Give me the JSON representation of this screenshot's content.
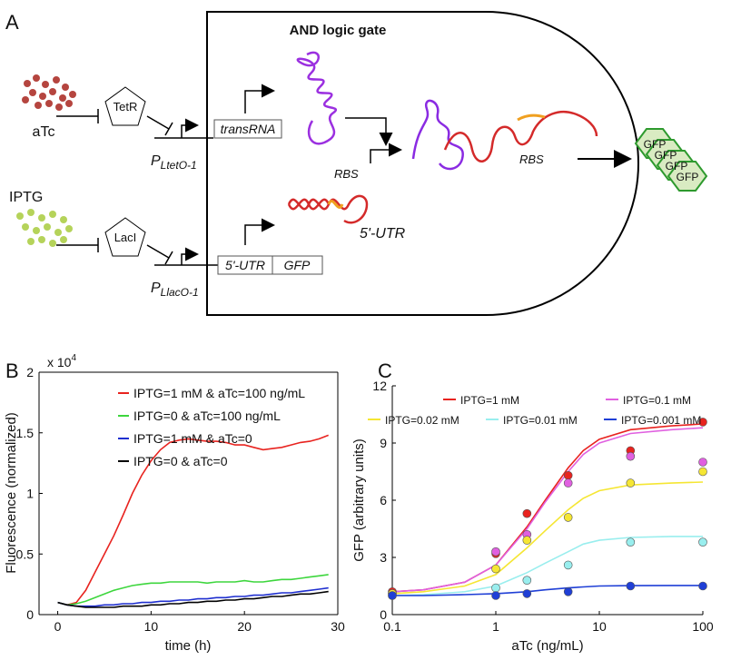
{
  "diagram": {
    "panel_label": "A",
    "title": "AND logic gate",
    "inducer1": "aTc",
    "repressor1": "TetR",
    "promoter1": {
      "letter": "P",
      "subscript": "LtetO-1"
    },
    "gene1": "transRNA",
    "inducer2": "IPTG",
    "repressor2": "LacI",
    "promoter2": {
      "letter": "P",
      "subscript": "LlacO-1"
    },
    "gene2_parts": [
      "5'-UTR",
      "GFP"
    ],
    "rbs_labels": [
      "RBS",
      "RBS"
    ],
    "utr_label": "5'-UTR",
    "product_labels": [
      "GFP",
      "GFP",
      "GFP",
      "GFP"
    ]
  },
  "chart_data": [
    {
      "panel_label": "B",
      "type": "line",
      "x_label": "time (h)",
      "y_label": "Fluorescence (normalized)",
      "y_multiplier": {
        "base": "x 10",
        "exponent": "4"
      },
      "x": [
        0,
        1,
        2,
        3,
        4,
        5,
        6,
        7,
        8,
        9,
        10,
        11,
        12,
        13,
        14,
        15,
        16,
        17,
        18,
        19,
        20,
        21,
        22,
        23,
        24,
        25,
        26,
        27,
        28,
        29
      ],
      "xlim": [
        -2,
        30
      ],
      "xticks": [
        0,
        10,
        20,
        30
      ],
      "ylim": [
        0,
        2
      ],
      "yticks": [
        0,
        0.5,
        1,
        1.5,
        2
      ],
      "legend": "upper left",
      "series": [
        {
          "name": "IPTG=1 mM & aTc=100 ng/mL",
          "color": "#e8231f",
          "values": [
            0.1,
            0.08,
            0.1,
            0.2,
            0.35,
            0.5,
            0.65,
            0.82,
            1.0,
            1.15,
            1.27,
            1.36,
            1.42,
            1.44,
            1.45,
            1.44,
            1.43,
            1.43,
            1.42,
            1.4,
            1.4,
            1.38,
            1.36,
            1.37,
            1.38,
            1.4,
            1.42,
            1.43,
            1.45,
            1.48
          ]
        },
        {
          "name": "IPTG=0 & aTc=100 ng/mL",
          "color": "#3dd63d",
          "values": [
            0.1,
            0.08,
            0.09,
            0.11,
            0.14,
            0.17,
            0.2,
            0.22,
            0.24,
            0.25,
            0.26,
            0.26,
            0.27,
            0.27,
            0.27,
            0.27,
            0.26,
            0.27,
            0.27,
            0.27,
            0.28,
            0.27,
            0.27,
            0.28,
            0.29,
            0.29,
            0.3,
            0.31,
            0.32,
            0.33
          ]
        },
        {
          "name": "IPTG=1 mM & aTc=0",
          "color": "#1f2fcf",
          "values": [
            0.1,
            0.08,
            0.07,
            0.07,
            0.07,
            0.08,
            0.08,
            0.09,
            0.09,
            0.1,
            0.1,
            0.11,
            0.11,
            0.12,
            0.12,
            0.13,
            0.13,
            0.14,
            0.14,
            0.15,
            0.15,
            0.16,
            0.16,
            0.17,
            0.18,
            0.18,
            0.19,
            0.2,
            0.21,
            0.22
          ]
        },
        {
          "name": "IPTG=0 & aTc=0",
          "color": "#000000",
          "values": [
            0.1,
            0.08,
            0.07,
            0.06,
            0.06,
            0.06,
            0.06,
            0.07,
            0.07,
            0.07,
            0.08,
            0.08,
            0.09,
            0.09,
            0.1,
            0.1,
            0.11,
            0.11,
            0.12,
            0.12,
            0.13,
            0.13,
            0.14,
            0.15,
            0.15,
            0.16,
            0.17,
            0.17,
            0.18,
            0.19
          ]
        }
      ]
    },
    {
      "panel_label": "C",
      "type": "scatter",
      "x_label": "aTc (ng/mL)",
      "y_label": "GFP (arbitrary units)",
      "x": [
        0.1,
        1,
        2,
        5,
        20,
        100
      ],
      "fit_x": [
        0.1,
        0.2,
        0.5,
        1,
        2,
        3,
        5,
        7,
        10,
        20,
        50,
        100
      ],
      "xlim": [
        0.1,
        100
      ],
      "xticks": [
        0.1,
        1,
        10,
        100
      ],
      "xscale": "log",
      "ylim": [
        0,
        12
      ],
      "yticks": [
        0,
        3,
        6,
        9,
        12
      ],
      "series": [
        {
          "name": "IPTG=1 mM",
          "color": "#e8231f",
          "values": [
            1.2,
            3.2,
            5.3,
            7.3,
            8.6,
            10.1
          ],
          "fit_values": [
            1.2,
            1.3,
            1.7,
            2.6,
            4.6,
            6.0,
            7.7,
            8.6,
            9.2,
            9.7,
            9.9,
            10.0
          ]
        },
        {
          "name": "IPTG=0.1 mM",
          "color": "#e060e0",
          "values": [
            1.1,
            3.3,
            4.2,
            6.9,
            8.3,
            8.0
          ],
          "fit_values": [
            1.2,
            1.3,
            1.7,
            2.6,
            4.5,
            5.9,
            7.5,
            8.4,
            9.0,
            9.5,
            9.7,
            9.8
          ]
        },
        {
          "name": "IPTG=0.02 mM",
          "color": "#f5e633",
          "values": [
            1.1,
            2.4,
            3.9,
            5.1,
            6.9,
            7.5
          ],
          "fit_values": [
            1.1,
            1.2,
            1.5,
            2.1,
            3.5,
            4.4,
            5.5,
            6.1,
            6.5,
            6.8,
            6.9,
            6.95
          ]
        },
        {
          "name": "IPTG=0.01 mM",
          "color": "#99eeee",
          "values": [
            1.0,
            1.4,
            1.8,
            2.6,
            3.8,
            3.8
          ],
          "fit_values": [
            1.0,
            1.05,
            1.2,
            1.5,
            2.2,
            2.7,
            3.3,
            3.7,
            3.9,
            4.05,
            4.1,
            4.1
          ]
        },
        {
          "name": "IPTG=0.001 mM",
          "color": "#1f3fd6",
          "values": [
            1.0,
            1.0,
            1.1,
            1.2,
            1.5,
            1.5
          ],
          "fit_values": [
            1.0,
            1.0,
            1.05,
            1.1,
            1.2,
            1.3,
            1.4,
            1.45,
            1.5,
            1.52,
            1.53,
            1.53
          ]
        }
      ]
    }
  ]
}
